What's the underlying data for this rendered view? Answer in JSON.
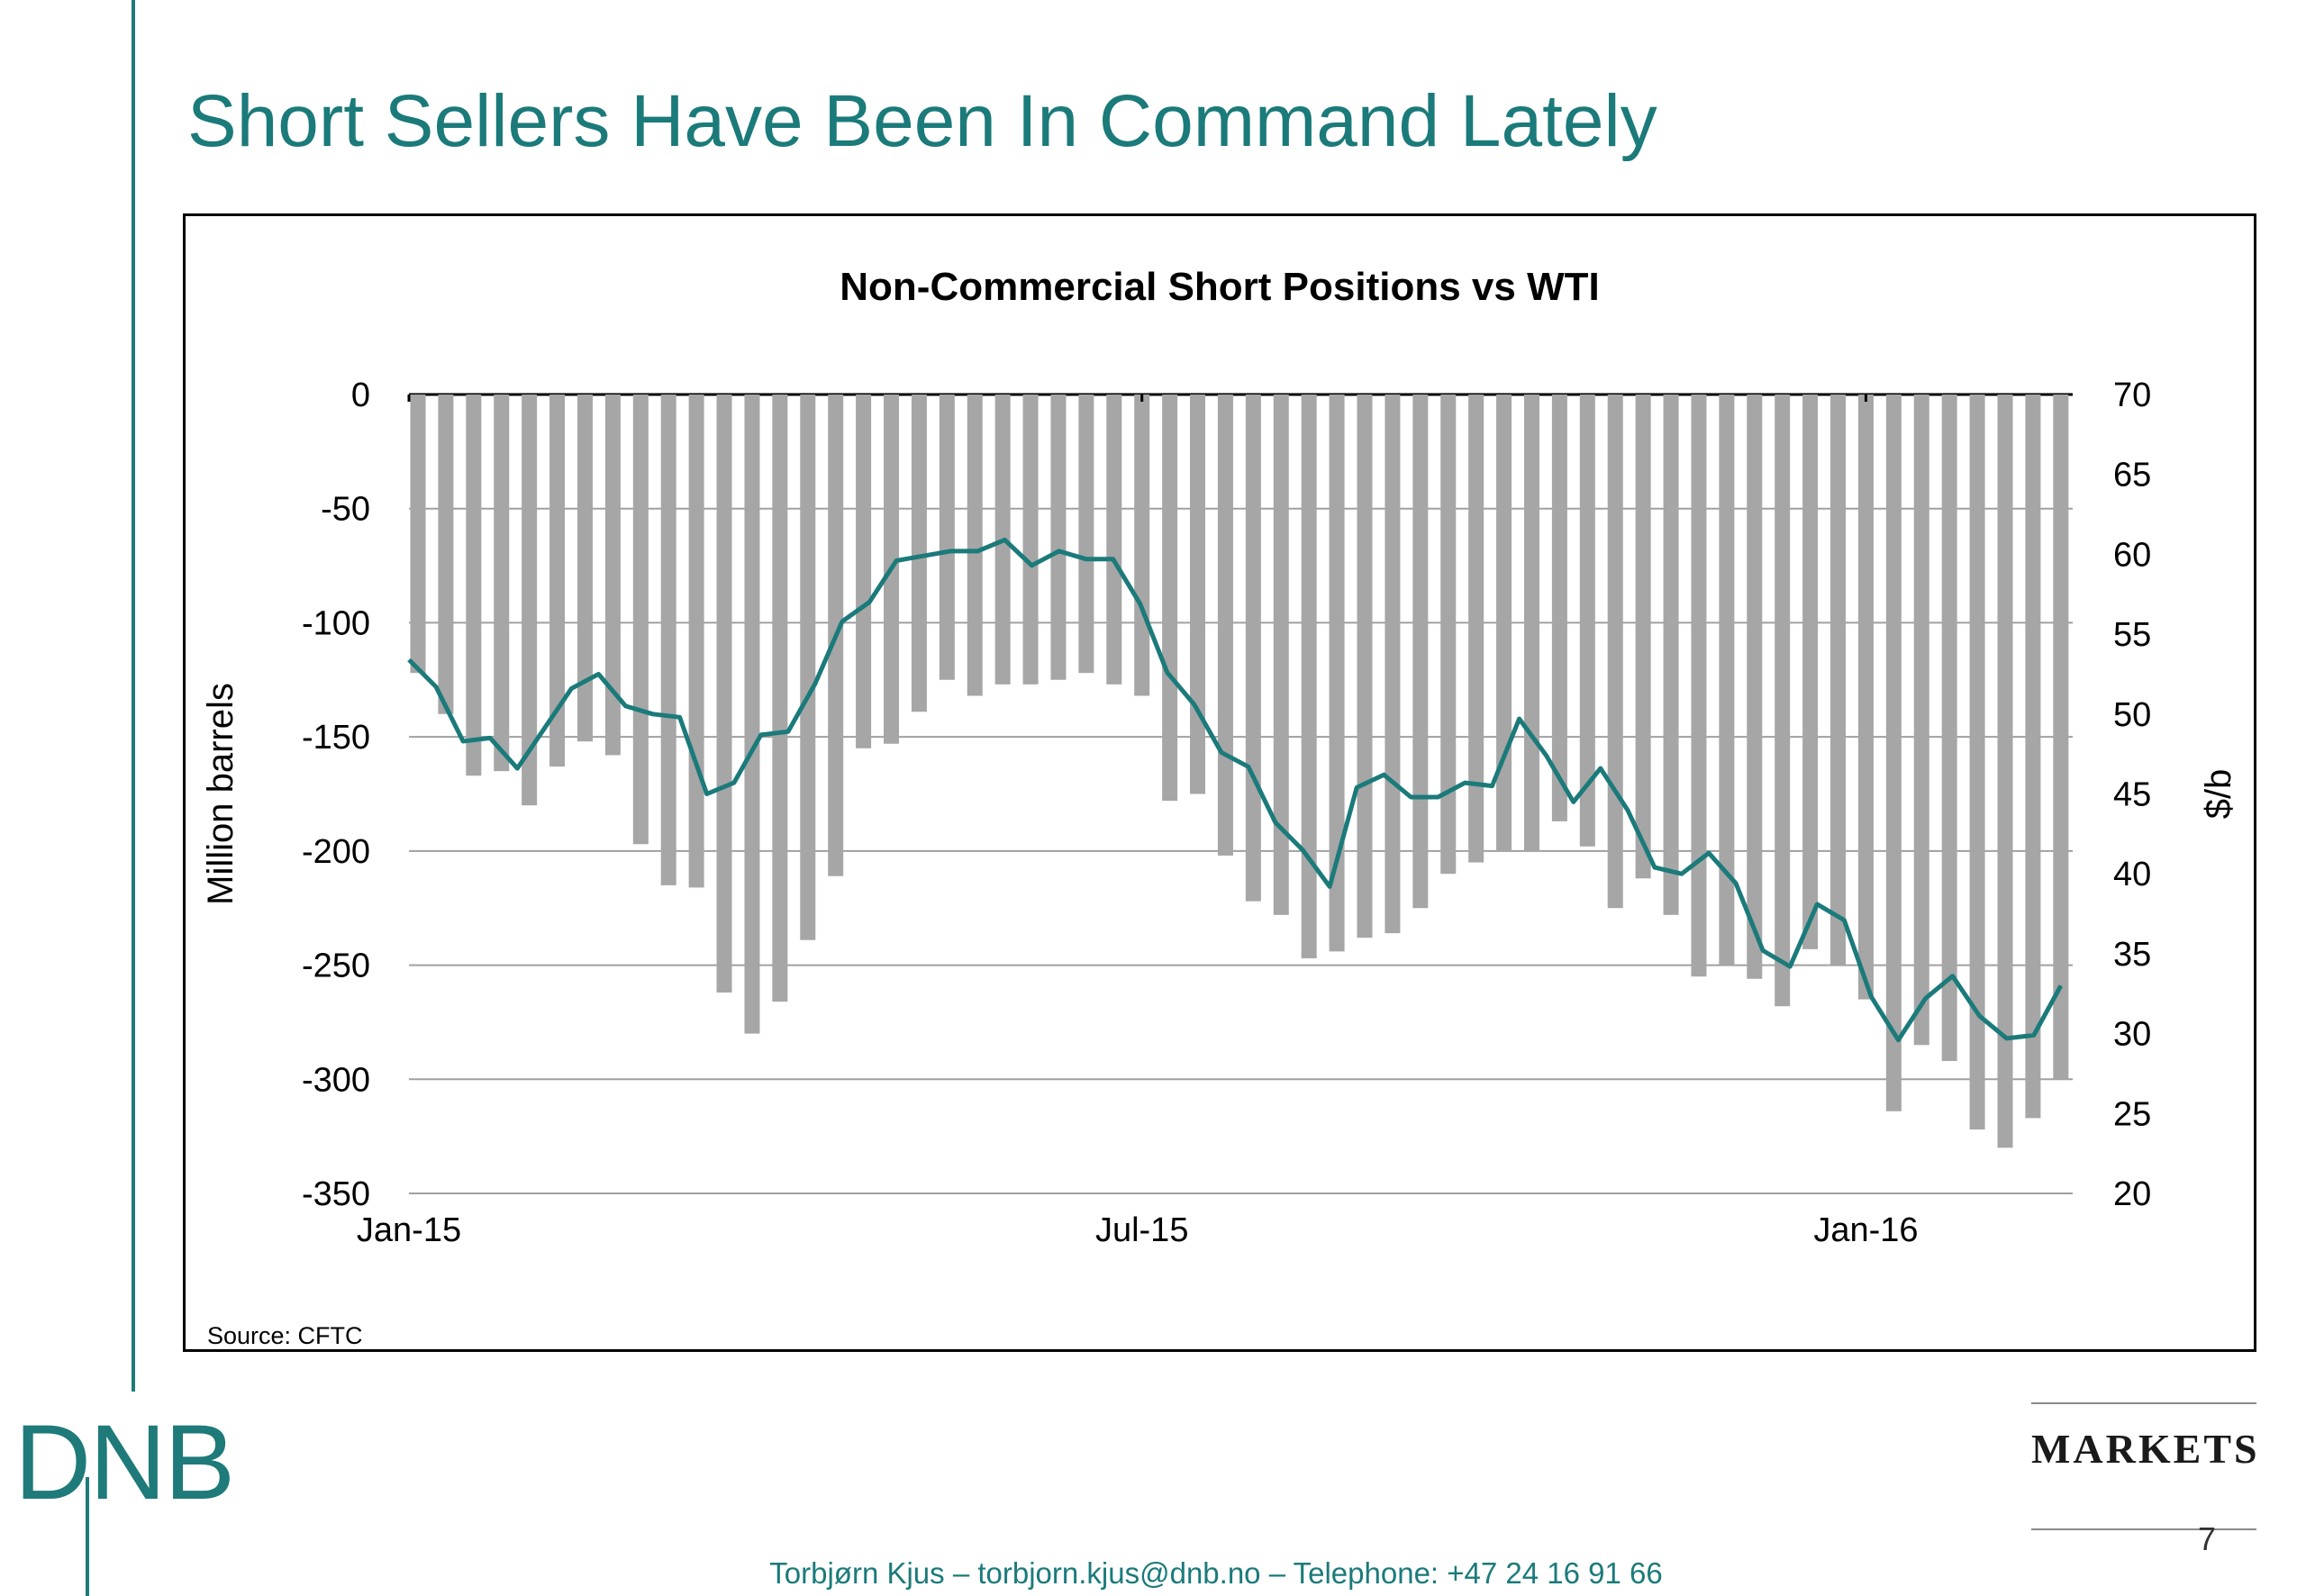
{
  "slide": {
    "title": "Short Sellers Have Been In Command Lately",
    "logo_text": "DNB",
    "brand_text": "MARKETS",
    "page_number": "7",
    "footer": "Torbjørn Kjus – torbjorn.kjus@dnb.no – Telephone: +47 24 16 91 66",
    "accent_color": "#1b7a7a"
  },
  "chart_data": {
    "type": "bar",
    "title": "Non-Commercial Short Positions vs WTI",
    "source": "Source:  CFTC",
    "ylabel": "Million barrels",
    "y2label": "$/b",
    "ylim": [
      -350,
      0
    ],
    "y2lim": [
      20,
      70
    ],
    "yticks": [
      "0",
      "-50",
      "-100",
      "-150",
      "-200",
      "-250",
      "-300",
      "-350"
    ],
    "y2ticks": [
      "70",
      "65",
      "60",
      "55",
      "50",
      "45",
      "40",
      "35",
      "30",
      "25",
      "20"
    ],
    "xticks": [
      {
        "label": "Jan-15",
        "index": 0
      },
      {
        "label": "Jul-15",
        "index": 26
      },
      {
        "label": "Jan-16",
        "index": 52
      }
    ],
    "grid": true,
    "colors": {
      "bars": "#a6a6a6",
      "line": "#1b7a7a",
      "grid": "#a0a0a0"
    },
    "series": [
      {
        "type": "bar",
        "axis": "left",
        "values": [
          -122,
          -140,
          -167,
          -165,
          -180,
          -163,
          -152,
          -158,
          -197,
          -215,
          -216,
          -262,
          -280,
          -266,
          -239,
          -211,
          -155,
          -153,
          -139,
          -125,
          -132,
          -127,
          -127,
          -125,
          -122,
          -127,
          -132,
          -178,
          -175,
          -202,
          -222,
          -228,
          -247,
          -244,
          -238,
          -236,
          -225,
          -210,
          -205,
          -200,
          -200,
          -187,
          -198,
          -225,
          -212,
          -228,
          -255,
          -250,
          -256,
          -268,
          -243,
          -250,
          -265,
          -314,
          -285,
          -292,
          -322,
          -330,
          -317,
          -300
        ]
      },
      {
        "type": "line",
        "axis": "right",
        "values": [
          53.4,
          51.7,
          48.3,
          48.5,
          46.6,
          49.1,
          51.6,
          52.5,
          50.5,
          50.0,
          49.8,
          45.0,
          45.7,
          48.7,
          48.9,
          51.9,
          55.8,
          57.0,
          59.6,
          59.9,
          60.2,
          60.2,
          60.9,
          59.3,
          60.2,
          59.7,
          59.7,
          56.9,
          52.6,
          50.6,
          47.6,
          46.7,
          43.2,
          41.5,
          39.2,
          45.4,
          46.2,
          44.8,
          44.8,
          45.7,
          45.5,
          49.7,
          47.4,
          44.5,
          46.6,
          44.0,
          40.4,
          40.0,
          41.3,
          39.4,
          35.2,
          34.2,
          38.1,
          37.1,
          32.3,
          29.6,
          32.2,
          33.6,
          31.1,
          29.7,
          29.9,
          33.0
        ]
      }
    ]
  }
}
